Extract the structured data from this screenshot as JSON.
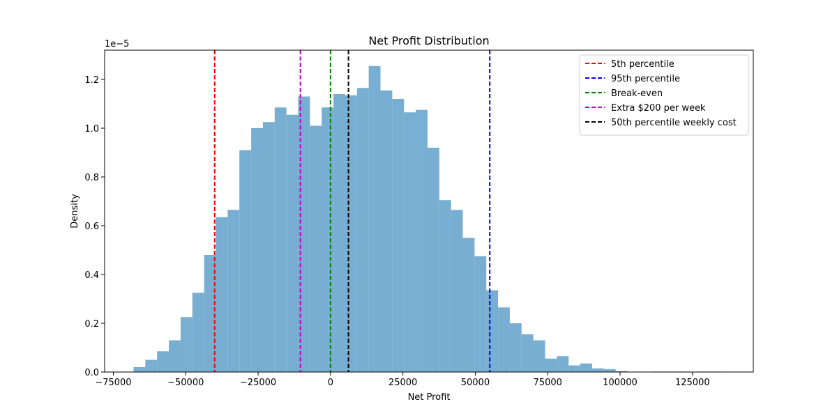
{
  "chart_data": {
    "type": "bar",
    "title": "Net Profit Distribution",
    "xlabel": "Net Profit",
    "ylabel": "Density",
    "y_scale_label": "1e−5",
    "y_scale_factor": 1e-05,
    "xlim": [
      -78000,
      146000
    ],
    "ylim": [
      0,
      1.32
    ],
    "x_ticks": [
      -75000,
      -50000,
      -25000,
      0,
      25000,
      50000,
      75000,
      100000,
      125000
    ],
    "x_tick_labels": [
      "−75000",
      "−50000",
      "−25000",
      "0",
      "25000",
      "50000",
      "75000",
      "100000",
      "125000"
    ],
    "y_ticks": [
      0,
      0.2,
      0.4,
      0.6,
      0.8,
      1.0,
      1.2
    ],
    "y_tick_labels": [
      "0.0",
      "0.2",
      "0.4",
      "0.6",
      "0.8",
      "1.0",
      "1.2"
    ],
    "bar_color": "#77aed2",
    "bins": {
      "start": -68000,
      "width": 4060,
      "values": [
        0.02,
        0.05,
        0.085,
        0.13,
        0.225,
        0.325,
        0.48,
        0.635,
        0.665,
        0.91,
        1.0,
        1.025,
        1.085,
        1.055,
        1.13,
        1.01,
        1.085,
        1.14,
        1.135,
        1.165,
        1.255,
        1.155,
        1.12,
        1.065,
        1.075,
        0.92,
        0.705,
        0.665,
        0.55,
        0.475,
        0.335,
        0.265,
        0.2,
        0.155,
        0.13,
        0.055,
        0.065,
        0.027,
        0.035,
        0.015,
        0.012,
        0.004,
        0.0,
        0.0,
        0.002,
        0.002,
        0.002,
        0.0,
        0.002,
        0.002
      ]
    },
    "vlines": [
      {
        "name": "5th percentile",
        "x": -40000,
        "color": "#ff0000"
      },
      {
        "name": "95th percentile",
        "x": 55000,
        "color": "#0000ff"
      },
      {
        "name": "Break-even",
        "x": 0,
        "color": "#008000"
      },
      {
        "name": "Extra $200 per week",
        "x": -10400,
        "color": "#bf00bf"
      },
      {
        "name": "50th percentile weekly cost",
        "x": 6200,
        "color": "#000000"
      }
    ],
    "legend_position": "top-right",
    "grid": false
  }
}
